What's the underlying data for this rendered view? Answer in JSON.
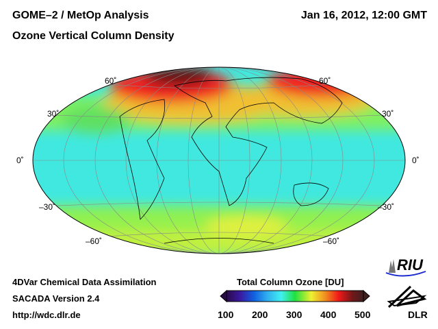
{
  "header": {
    "title_line1": "GOME–2 / MetOp Analysis",
    "title_line2": "Ozone Vertical Column Density",
    "datetime": "Jan 16, 2012, 12:00 GMT"
  },
  "map": {
    "projection": "Hammer-Aitoff world",
    "lat_labels_left": [
      "60˚",
      "30˚",
      "0˚",
      "–30˚",
      "–60˚"
    ],
    "lat_labels_right": [
      "60˚",
      "30˚",
      "0˚",
      "–30˚",
      "–60˚"
    ]
  },
  "colorbar": {
    "title": "Total Column Ozone [DU]",
    "ticks": [
      "100",
      "200",
      "300",
      "400",
      "500"
    ],
    "min": 100,
    "max": 500,
    "colors": [
      "#2a0a4a",
      "#3a1aa0",
      "#1060e0",
      "#30b0f0",
      "#40f0f0",
      "#20e040",
      "#f0f030",
      "#f09020",
      "#f01818",
      "#701818",
      "#402020"
    ]
  },
  "footer": {
    "line1": "4DVar Chemical Data Assimilation",
    "line2": "SACADA Version 2.4",
    "url": "http://wdc.dlr.de"
  },
  "logos": {
    "riu": "RIU",
    "dlr": "DLR"
  }
}
